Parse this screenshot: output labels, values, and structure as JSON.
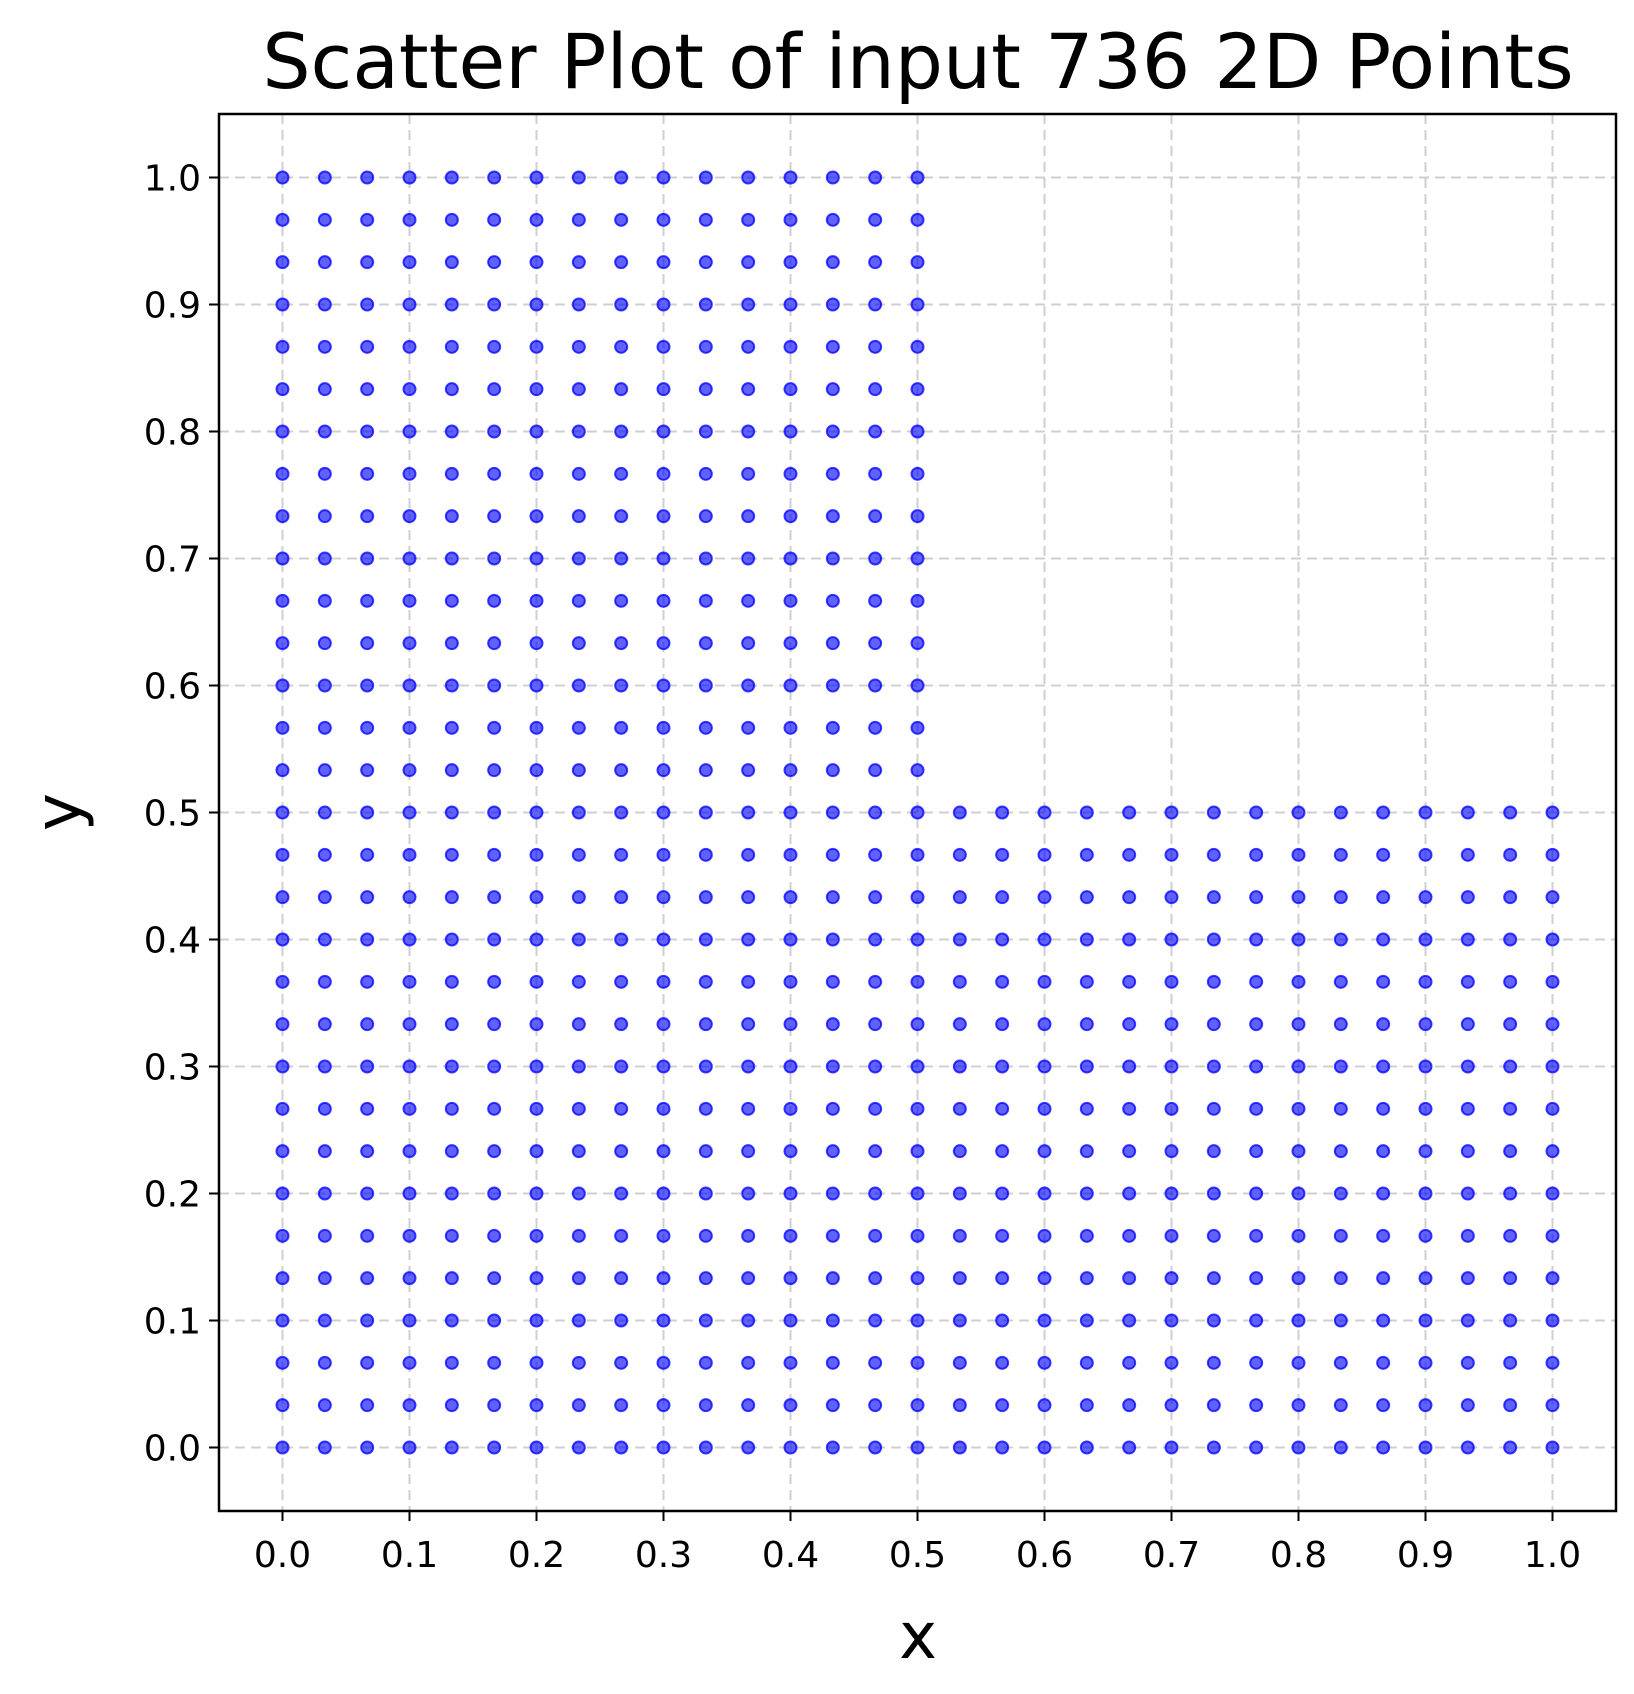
{
  "chart_data": {
    "type": "scatter",
    "title": "Scatter Plot of input 736 2D Points",
    "xlabel": "x",
    "ylabel": "y",
    "xlim": [
      -0.05,
      1.05
    ],
    "ylim": [
      -0.05,
      1.05
    ],
    "xticks": [
      "0.0",
      "0.1",
      "0.2",
      "0.3",
      "0.4",
      "0.5",
      "0.6",
      "0.7",
      "0.8",
      "0.9",
      "1.0"
    ],
    "yticks": [
      "0.0",
      "0.1",
      "0.2",
      "0.3",
      "0.4",
      "0.5",
      "0.6",
      "0.7",
      "0.8",
      "0.9",
      "1.0"
    ],
    "grid": true,
    "marker_color": "#0000ff",
    "grid_spacing": 0.0333,
    "region": "L-shaped: full square [0,1]x[0,1] minus the quadrant x>0.5, y>0.5",
    "point_count": 736
  }
}
